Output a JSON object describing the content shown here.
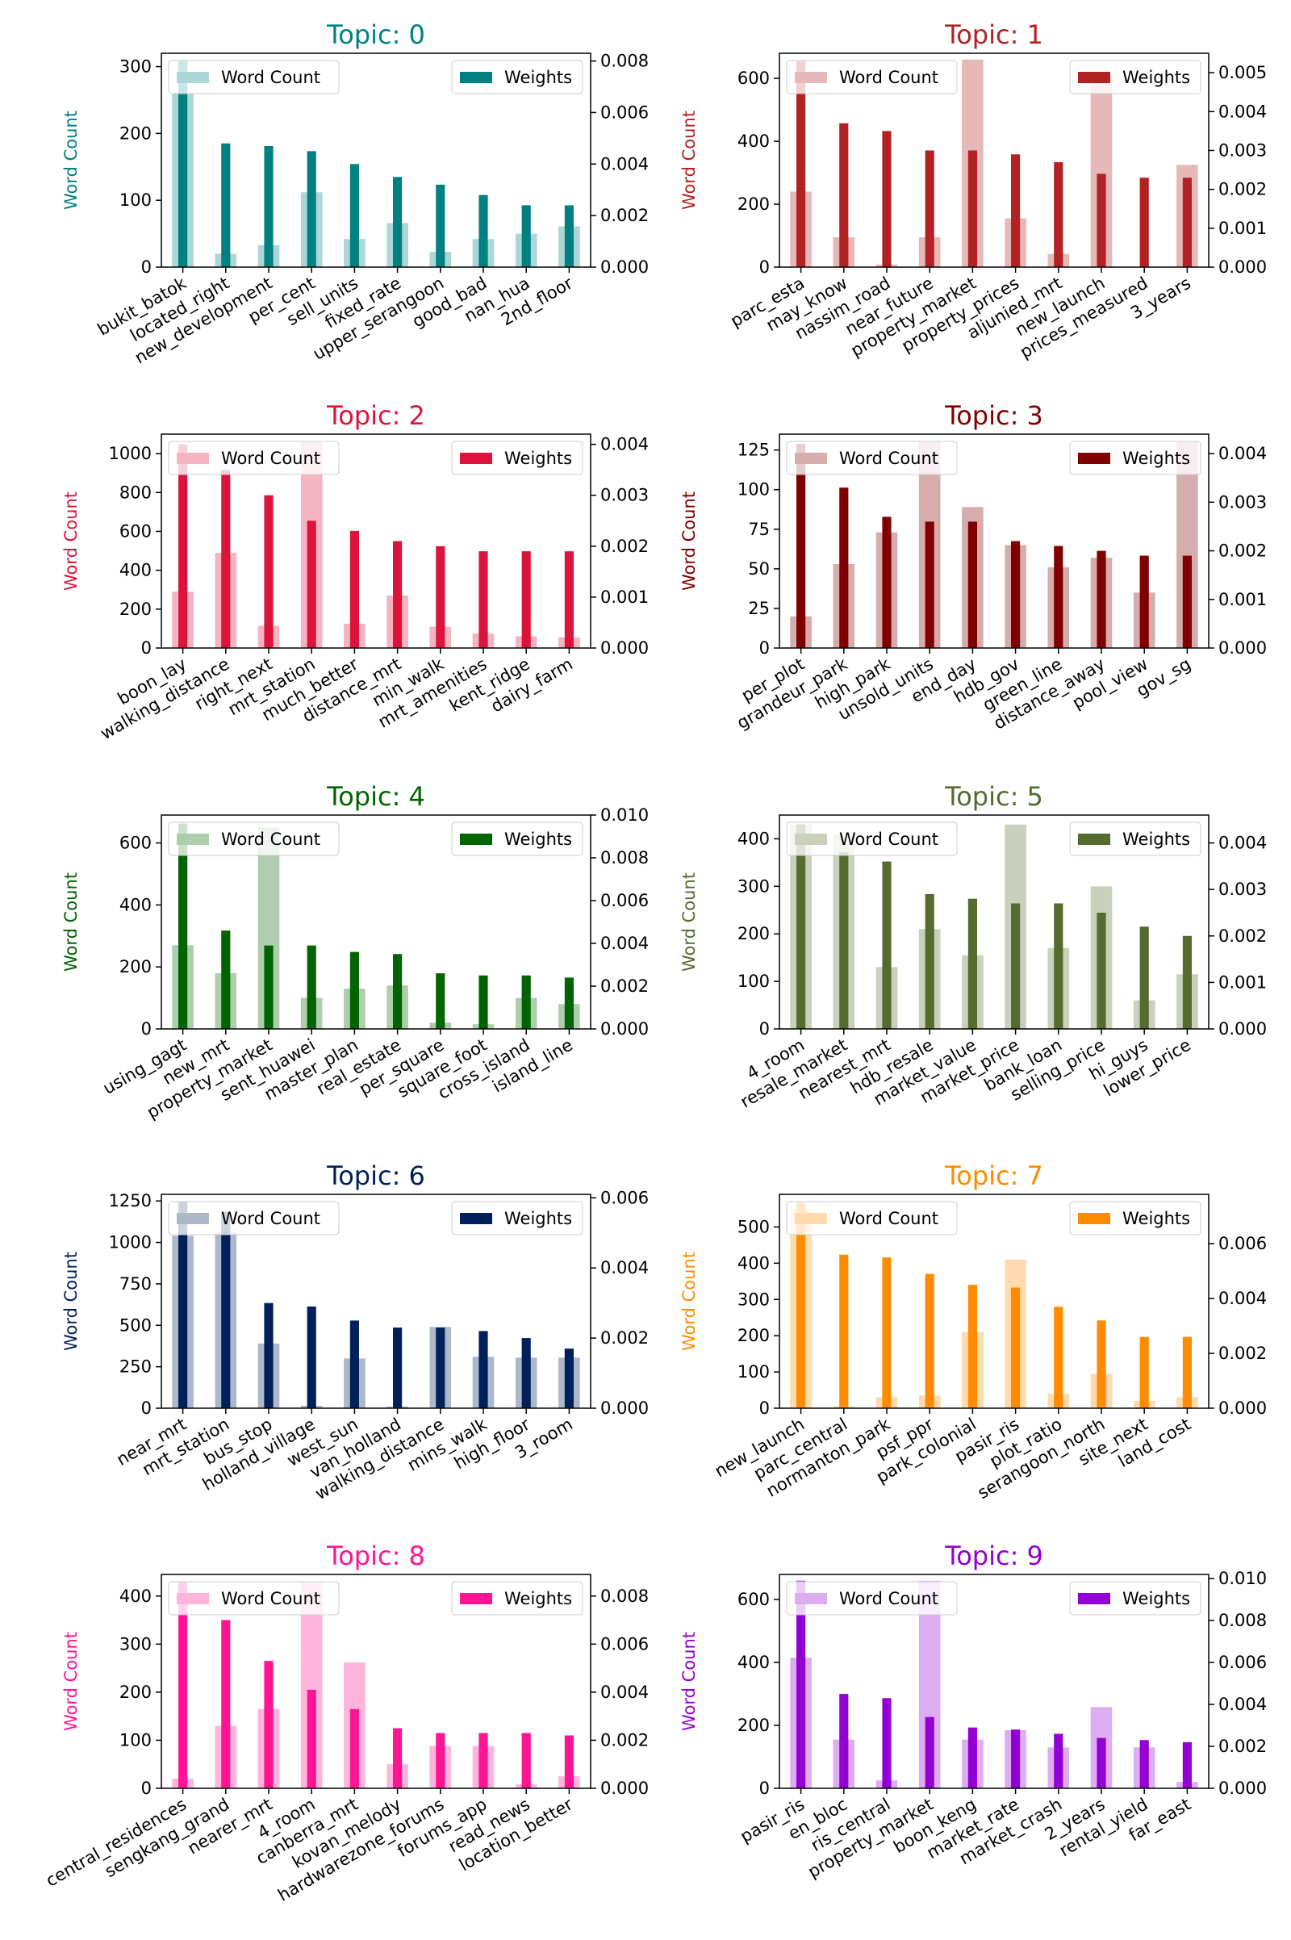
{
  "chart_data": [
    {
      "type": "bar",
      "title": "Topic: 0",
      "color": "#008080",
      "ylabel": "Word Count",
      "legend_left": "Word Count",
      "legend_right": "Weights",
      "left_ylim": [
        0,
        320
      ],
      "left_ticks": [
        "0",
        "100",
        "200",
        "300"
      ],
      "right_ylim": [
        0,
        0.0083
      ],
      "right_ticks": [
        "0.000",
        "0.002",
        "0.004",
        "0.006",
        "0.008"
      ],
      "categories": [
        "bukit_batok",
        "located_right",
        "new_development",
        "per_cent",
        "sell_units",
        "fixed_rate",
        "upper_serangoon",
        "good_bad",
        "nan_hua",
        "2nd_floor"
      ],
      "series": [
        {
          "name": "Word Count",
          "axis": "left",
          "values": [
            260,
            20,
            33,
            112,
            42,
            66,
            23,
            42,
            50,
            61
          ]
        },
        {
          "name": "Weights",
          "axis": "right",
          "values": [
            0.008,
            0.0048,
            0.0047,
            0.0045,
            0.004,
            0.0035,
            0.0032,
            0.0028,
            0.0024,
            0.0024
          ]
        }
      ]
    },
    {
      "type": "bar",
      "title": "Topic: 1",
      "color": "#b22222",
      "ylabel": "Word Count",
      "legend_left": "Word Count",
      "legend_right": "Weights",
      "left_ylim": [
        0,
        680
      ],
      "left_ticks": [
        "0",
        "200",
        "400",
        "600"
      ],
      "right_ylim": [
        0,
        0.0055
      ],
      "right_ticks": [
        "0.000",
        "0.001",
        "0.002",
        "0.003",
        "0.004",
        "0.005"
      ],
      "categories": [
        "parc_esta",
        "may_know",
        "nassim_road",
        "near_future",
        "property_market",
        "property_prices",
        "aljunied_mrt",
        "new_launch",
        "prices_measured",
        "3_years"
      ],
      "series": [
        {
          "name": "Word Count",
          "axis": "left",
          "values": [
            240,
            95,
            8,
            95,
            660,
            155,
            42,
            610,
            0,
            325
          ]
        },
        {
          "name": "Weights",
          "axis": "right",
          "values": [
            0.0053,
            0.0037,
            0.0035,
            0.003,
            0.003,
            0.0029,
            0.0027,
            0.0024,
            0.0023,
            0.0023
          ]
        }
      ]
    },
    {
      "type": "bar",
      "title": "Topic: 2",
      "color": "#dc143c",
      "ylabel": "Word Count",
      "legend_left": "Word Count",
      "legend_right": "Weights",
      "left_ylim": [
        0,
        1100
      ],
      "left_ticks": [
        "0",
        "200",
        "400",
        "600",
        "800",
        "1000"
      ],
      "right_ylim": [
        0,
        0.0042
      ],
      "right_ticks": [
        "0.000",
        "0.001",
        "0.002",
        "0.003",
        "0.004"
      ],
      "categories": [
        "boon_lay",
        "walking_distance",
        "right_next",
        "mrt_station",
        "much_better",
        "distance_mrt",
        "min_walk",
        "mrt_amenities",
        "kent_ridge",
        "dairy_farm"
      ],
      "series": [
        {
          "name": "Word Count",
          "axis": "left",
          "values": [
            290,
            490,
            115,
            1060,
            125,
            270,
            110,
            75,
            60,
            55
          ]
        },
        {
          "name": "Weights",
          "axis": "right",
          "values": [
            0.004,
            0.0035,
            0.003,
            0.0025,
            0.0023,
            0.0021,
            0.002,
            0.0019,
            0.0019,
            0.0019
          ]
        }
      ]
    },
    {
      "type": "bar",
      "title": "Topic: 3",
      "color": "#800000",
      "ylabel": "Word Count",
      "legend_left": "Word Count",
      "legend_right": "Weights",
      "left_ylim": [
        0,
        135
      ],
      "left_ticks": [
        "0",
        "25",
        "50",
        "75",
        "100",
        "125"
      ],
      "right_ylim": [
        0,
        0.0044
      ],
      "right_ticks": [
        "0.000",
        "0.001",
        "0.002",
        "0.003",
        "0.004"
      ],
      "categories": [
        "per_plot",
        "grandeur_park",
        "high_park",
        "unsold_units",
        "end_day",
        "hdb_gov",
        "green_line",
        "distance_away",
        "pool_view",
        "gov_sg"
      ],
      "series": [
        {
          "name": "Word Count",
          "axis": "left",
          "values": [
            20,
            53,
            73,
            130,
            89,
            65,
            51,
            57,
            35,
            130
          ]
        },
        {
          "name": "Weights",
          "axis": "right",
          "values": [
            0.0042,
            0.0033,
            0.0027,
            0.0026,
            0.0026,
            0.0022,
            0.0021,
            0.002,
            0.0019,
            0.0019
          ]
        }
      ]
    },
    {
      "type": "bar",
      "title": "Topic: 4",
      "color": "#006400",
      "ylabel": "Word Count",
      "legend_left": "Word Count",
      "legend_right": "Weights",
      "left_ylim": [
        0,
        690
      ],
      "left_ticks": [
        "0",
        "200",
        "400",
        "600"
      ],
      "right_ylim": [
        0,
        0.01
      ],
      "right_ticks": [
        "0.000",
        "0.002",
        "0.004",
        "0.006",
        "0.008",
        "0.010"
      ],
      "categories": [
        "using_gagt",
        "new_mrt",
        "property_market",
        "sent_huawei",
        "master_plan",
        "real_estate",
        "per_square",
        "square_foot",
        "cross_island",
        "island_line"
      ],
      "series": [
        {
          "name": "Word Count",
          "axis": "left",
          "values": [
            270,
            180,
            650,
            100,
            130,
            140,
            20,
            15,
            100,
            80
          ]
        },
        {
          "name": "Weights",
          "axis": "right",
          "values": [
            0.0096,
            0.0046,
            0.0039,
            0.0039,
            0.0036,
            0.0035,
            0.0026,
            0.0025,
            0.0025,
            0.0024
          ]
        }
      ]
    },
    {
      "type": "bar",
      "title": "Topic: 5",
      "color": "#556b2f",
      "ylabel": "Word Count",
      "legend_left": "Word Count",
      "legend_right": "Weights",
      "left_ylim": [
        0,
        450
      ],
      "left_ticks": [
        "0",
        "100",
        "200",
        "300",
        "400"
      ],
      "right_ylim": [
        0,
        0.0046
      ],
      "right_ticks": [
        "0.000",
        "0.001",
        "0.002",
        "0.003",
        "0.004"
      ],
      "categories": [
        "4_room",
        "resale_market",
        "nearest_mrt",
        "hdb_resale",
        "market_value",
        "market_price",
        "bank_loan",
        "selling_price",
        "hi_guys",
        "lower_price"
      ],
      "series": [
        {
          "name": "Word Count",
          "axis": "left",
          "values": [
            430,
            410,
            130,
            210,
            155,
            430,
            170,
            300,
            60,
            115
          ]
        },
        {
          "name": "Weights",
          "axis": "right",
          "values": [
            0.0044,
            0.0038,
            0.0036,
            0.0029,
            0.0028,
            0.0027,
            0.0027,
            0.0025,
            0.0022,
            0.002
          ]
        }
      ]
    },
    {
      "type": "bar",
      "title": "Topic: 6",
      "color": "#00205b",
      "ylabel": "Word Count",
      "legend_left": "Word Count",
      "legend_right": "Weights",
      "left_ylim": [
        0,
        1290
      ],
      "left_ticks": [
        "0",
        "250",
        "500",
        "750",
        "1000",
        "1250"
      ],
      "right_ylim": [
        0,
        0.0061
      ],
      "right_ticks": [
        "0.000",
        "0.002",
        "0.004",
        "0.006"
      ],
      "categories": [
        "near_mrt",
        "mrt_station",
        "bus_stop",
        "holland_village",
        "west_sun",
        "van_holland",
        "walking_distance",
        "mins_walk",
        "high_floor",
        "3_room"
      ],
      "series": [
        {
          "name": "Word Count",
          "axis": "left",
          "values": [
            1040,
            1060,
            390,
            15,
            300,
            10,
            490,
            310,
            305,
            305
          ]
        },
        {
          "name": "Weights",
          "axis": "right",
          "values": [
            0.0059,
            0.0056,
            0.003,
            0.0029,
            0.0025,
            0.0023,
            0.0023,
            0.0022,
            0.002,
            0.0017
          ]
        }
      ]
    },
    {
      "type": "bar",
      "title": "Topic: 7",
      "color": "#ff8c00",
      "ylabel": "Word Count",
      "legend_left": "Word Count",
      "legend_right": "Weights",
      "left_ylim": [
        0,
        590
      ],
      "left_ticks": [
        "0",
        "100",
        "200",
        "300",
        "400",
        "500"
      ],
      "right_ylim": [
        0,
        0.0078
      ],
      "right_ticks": [
        "0.000",
        "0.002",
        "0.004",
        "0.006"
      ],
      "categories": [
        "new_launch",
        "parc_central",
        "normanton_park",
        "psf_ppr",
        "park_colonial",
        "pasir_ris",
        "plot_ratio",
        "serangoon_north",
        "site_next",
        "land_cost"
      ],
      "series": [
        {
          "name": "Word Count",
          "axis": "left",
          "values": [
            550,
            5,
            30,
            35,
            210,
            410,
            40,
            95,
            20,
            30
          ]
        },
        {
          "name": "Weights",
          "axis": "right",
          "values": [
            0.0075,
            0.0056,
            0.0055,
            0.0049,
            0.0045,
            0.0044,
            0.0037,
            0.0032,
            0.0026,
            0.0026
          ]
        }
      ]
    },
    {
      "type": "bar",
      "title": "Topic: 8",
      "color": "#ff1493",
      "ylabel": "central_residences",
      "ylabel_visible": "Word Count",
      "legend_left": "Word Count",
      "legend_right": "Weights",
      "left_ylim": [
        0,
        445
      ],
      "left_ticks": [
        "0",
        "100",
        "200",
        "300",
        "400"
      ],
      "right_ylim": [
        0,
        0.0089
      ],
      "right_ticks": [
        "0.000",
        "0.002",
        "0.004",
        "0.006",
        "0.008"
      ],
      "categories": [
        "central_residences",
        "sengkang_grand",
        "nearer_mrt",
        "4_room",
        "canberra_mrt",
        "kovan_melody",
        "hardwarezone_forums",
        "forums_app",
        "read_news",
        "location_better"
      ],
      "series": [
        {
          "name": "Word Count",
          "axis": "left",
          "values": [
            20,
            130,
            165,
            430,
            262,
            50,
            88,
            88,
            8,
            25
          ]
        },
        {
          "name": "Weights",
          "axis": "right",
          "values": [
            0.0086,
            0.007,
            0.0053,
            0.0041,
            0.0033,
            0.0025,
            0.0023,
            0.0023,
            0.0023,
            0.0022
          ]
        }
      ]
    },
    {
      "type": "bar",
      "title": "Topic: 9",
      "color": "#9400d3",
      "ylabel": "Word Count",
      "legend_left": "Word Count",
      "legend_right": "Weights",
      "left_ylim": [
        0,
        680
      ],
      "left_ticks": [
        "0",
        "200",
        "400",
        "600"
      ],
      "right_ylim": [
        0,
        0.0102
      ],
      "right_ticks": [
        "0.000",
        "0.002",
        "0.004",
        "0.006",
        "0.008",
        "0.010"
      ],
      "categories": [
        "pasir_ris",
        "en_bloc",
        "ris_central",
        "property_market",
        "boon_keng",
        "market_rate",
        "market_crash",
        "2_years",
        "rental_yield",
        "far_east"
      ],
      "series": [
        {
          "name": "Word Count",
          "axis": "left",
          "values": [
            415,
            155,
            25,
            660,
            155,
            185,
            130,
            258,
            130,
            20
          ]
        },
        {
          "name": "Weights",
          "axis": "right",
          "values": [
            0.0099,
            0.0045,
            0.0043,
            0.0034,
            0.0029,
            0.0028,
            0.0026,
            0.0024,
            0.0023,
            0.0022
          ]
        }
      ]
    }
  ]
}
